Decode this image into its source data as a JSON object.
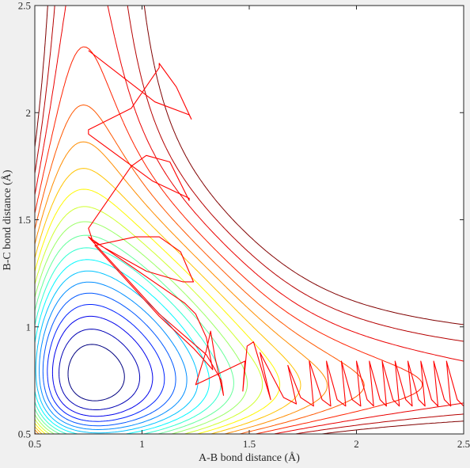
{
  "chart_data": {
    "type": "contour",
    "title": "",
    "xlabel": "A-B bond distance (Å)",
    "ylabel": "B-C bond distance (Å)",
    "xlim": [
      0.5,
      2.5
    ],
    "ylim": [
      0.5,
      2.5
    ],
    "xticks": [
      0.5,
      1,
      1.5,
      2,
      2.5
    ],
    "yticks": [
      0.5,
      1,
      1.5,
      2,
      2.5
    ],
    "xtick_labels": [
      "0.5",
      "1",
      "1.5",
      "2",
      "2.5"
    ],
    "ytick_labels": [
      "0.5",
      "1",
      "1.5",
      "2",
      "2.5"
    ],
    "grid": false,
    "background": "#ffffff",
    "colormap": "jet",
    "contour_levels": 20,
    "trajectory": {
      "color": "#ff0000",
      "points": [
        [
          0.75,
          2.29
        ],
        [
          1.06,
          2.05
        ],
        [
          1.22,
          1.99
        ],
        [
          1.23,
          1.97
        ],
        [
          1.16,
          2.12
        ],
        [
          1.08,
          2.23
        ],
        [
          1.08,
          2.21
        ],
        [
          0.95,
          2.02
        ],
        [
          0.75,
          1.92
        ],
        [
          0.75,
          1.9
        ],
        [
          1.05,
          1.68
        ],
        [
          1.22,
          1.6
        ],
        [
          1.22,
          1.59
        ],
        [
          1.13,
          1.77
        ],
        [
          1.02,
          1.8
        ],
        [
          0.95,
          1.75
        ],
        [
          0.75,
          1.46
        ],
        [
          0.77,
          1.4
        ],
        [
          1.02,
          1.26
        ],
        [
          1.19,
          1.21
        ],
        [
          1.24,
          1.21
        ],
        [
          1.18,
          1.35
        ],
        [
          1.08,
          1.42
        ],
        [
          0.97,
          1.42
        ],
        [
          0.78,
          1.38
        ],
        [
          1.08,
          1.05
        ],
        [
          1.24,
          0.9
        ],
        [
          1.33,
          0.8
        ],
        [
          1.3,
          0.95
        ],
        [
          1.25,
          1.06
        ],
        [
          1.2,
          1.11
        ],
        [
          0.75,
          1.42
        ],
        [
          1.08,
          1.06
        ],
        [
          1.3,
          0.87
        ],
        [
          1.37,
          0.75
        ],
        [
          1.38,
          0.68
        ],
        [
          1.34,
          0.86
        ],
        [
          1.32,
          0.98
        ],
        [
          1.3,
          0.89
        ],
        [
          1.25,
          0.73
        ],
        [
          1.48,
          0.84
        ],
        [
          1.47,
          0.7
        ],
        [
          1.49,
          0.91
        ],
        [
          1.52,
          0.93
        ],
        [
          1.57,
          0.76
        ],
        [
          1.6,
          0.66
        ],
        [
          1.55,
          0.88
        ],
        [
          1.66,
          0.67
        ],
        [
          1.72,
          0.64
        ],
        [
          1.68,
          0.82
        ],
        [
          1.74,
          0.67
        ],
        [
          1.8,
          0.63
        ],
        [
          1.78,
          0.84
        ],
        [
          1.84,
          0.66
        ],
        [
          1.88,
          0.63
        ],
        [
          1.86,
          0.84
        ],
        [
          1.91,
          0.66
        ],
        [
          1.95,
          0.63
        ],
        [
          1.93,
          0.84
        ],
        [
          1.98,
          0.66
        ],
        [
          2.02,
          0.63
        ],
        [
          2.0,
          0.84
        ],
        [
          2.05,
          0.66
        ],
        [
          2.08,
          0.63
        ],
        [
          2.06,
          0.84
        ],
        [
          2.11,
          0.66
        ],
        [
          2.14,
          0.63
        ],
        [
          2.12,
          0.84
        ],
        [
          2.17,
          0.66
        ],
        [
          2.2,
          0.63
        ],
        [
          2.18,
          0.84
        ],
        [
          2.23,
          0.66
        ],
        [
          2.26,
          0.63
        ],
        [
          2.24,
          0.84
        ],
        [
          2.29,
          0.66
        ],
        [
          2.32,
          0.63
        ],
        [
          2.3,
          0.84
        ],
        [
          2.35,
          0.66
        ],
        [
          2.38,
          0.63
        ],
        [
          2.36,
          0.84
        ],
        [
          2.41,
          0.66
        ],
        [
          2.44,
          0.63
        ],
        [
          2.42,
          0.84
        ],
        [
          2.47,
          0.66
        ],
        [
          2.5,
          0.63
        ]
      ]
    }
  }
}
